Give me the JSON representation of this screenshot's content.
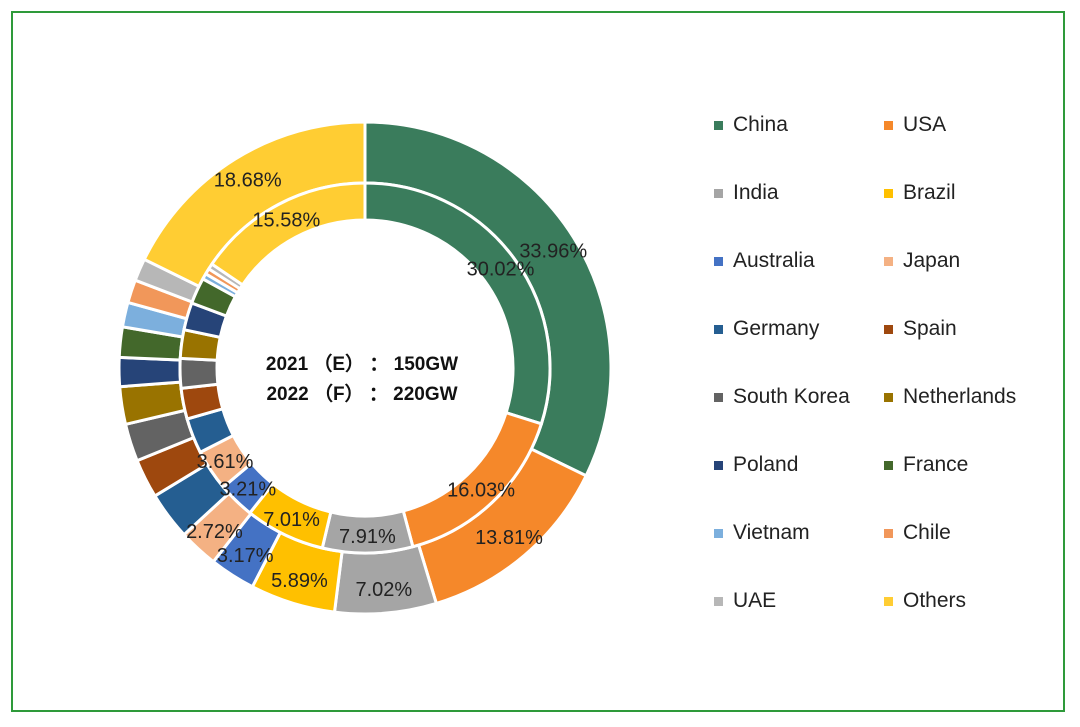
{
  "chart_data": {
    "type": "pie",
    "subtype": "double-donut",
    "center_labels": [
      "2021 （E） ： 150GW",
      "2022 （F） ： 220GW"
    ],
    "categories": [
      "China",
      "USA",
      "India",
      "Brazil",
      "Australia",
      "Japan",
      "Germany",
      "Spain",
      "South Korea",
      "Netherlands",
      "Poland",
      "France",
      "Vietnam",
      "Chile",
      "UAE",
      "Others"
    ],
    "colors": [
      "#3a7c5c",
      "#f5882a",
      "#a5a5a5",
      "#ffc000",
      "#4472c4",
      "#f4b183",
      "#255e91",
      "#9e480e",
      "#636363",
      "#997300",
      "#264478",
      "#43682b",
      "#7cafdd",
      "#f1975a",
      "#b7b7b7",
      "#ffcd33"
    ],
    "series": [
      {
        "name": "2021 (E)",
        "values": [
          30.02,
          16.03,
          7.91,
          7.01,
          3.21,
          3.61,
          3.1,
          2.7,
          2.6,
          2.5,
          2.4,
          2.3,
          0.5,
          0.5,
          0.5,
          15.58
        ],
        "labels": [
          "30.02%",
          "16.03%",
          "7.91%",
          "7.01%",
          "3.21%",
          "3.61%",
          "",
          "",
          "",
          "",
          "",
          "",
          "",
          "",
          "",
          "15.58%"
        ]
      },
      {
        "name": "2022 (F)",
        "values": [
          33.96,
          13.81,
          7.02,
          5.89,
          3.17,
          2.72,
          3.31,
          2.7,
          2.6,
          2.6,
          2.0,
          2.1,
          1.7,
          1.6,
          1.55,
          18.68
        ],
        "labels": [
          "33.96%",
          "13.81%",
          "7.02%",
          "5.89%",
          "3.17%",
          "2.72%",
          "",
          "",
          "",
          "",
          "",
          "",
          "",
          "",
          "",
          "18.68%"
        ]
      }
    ],
    "legend_position": "right"
  }
}
